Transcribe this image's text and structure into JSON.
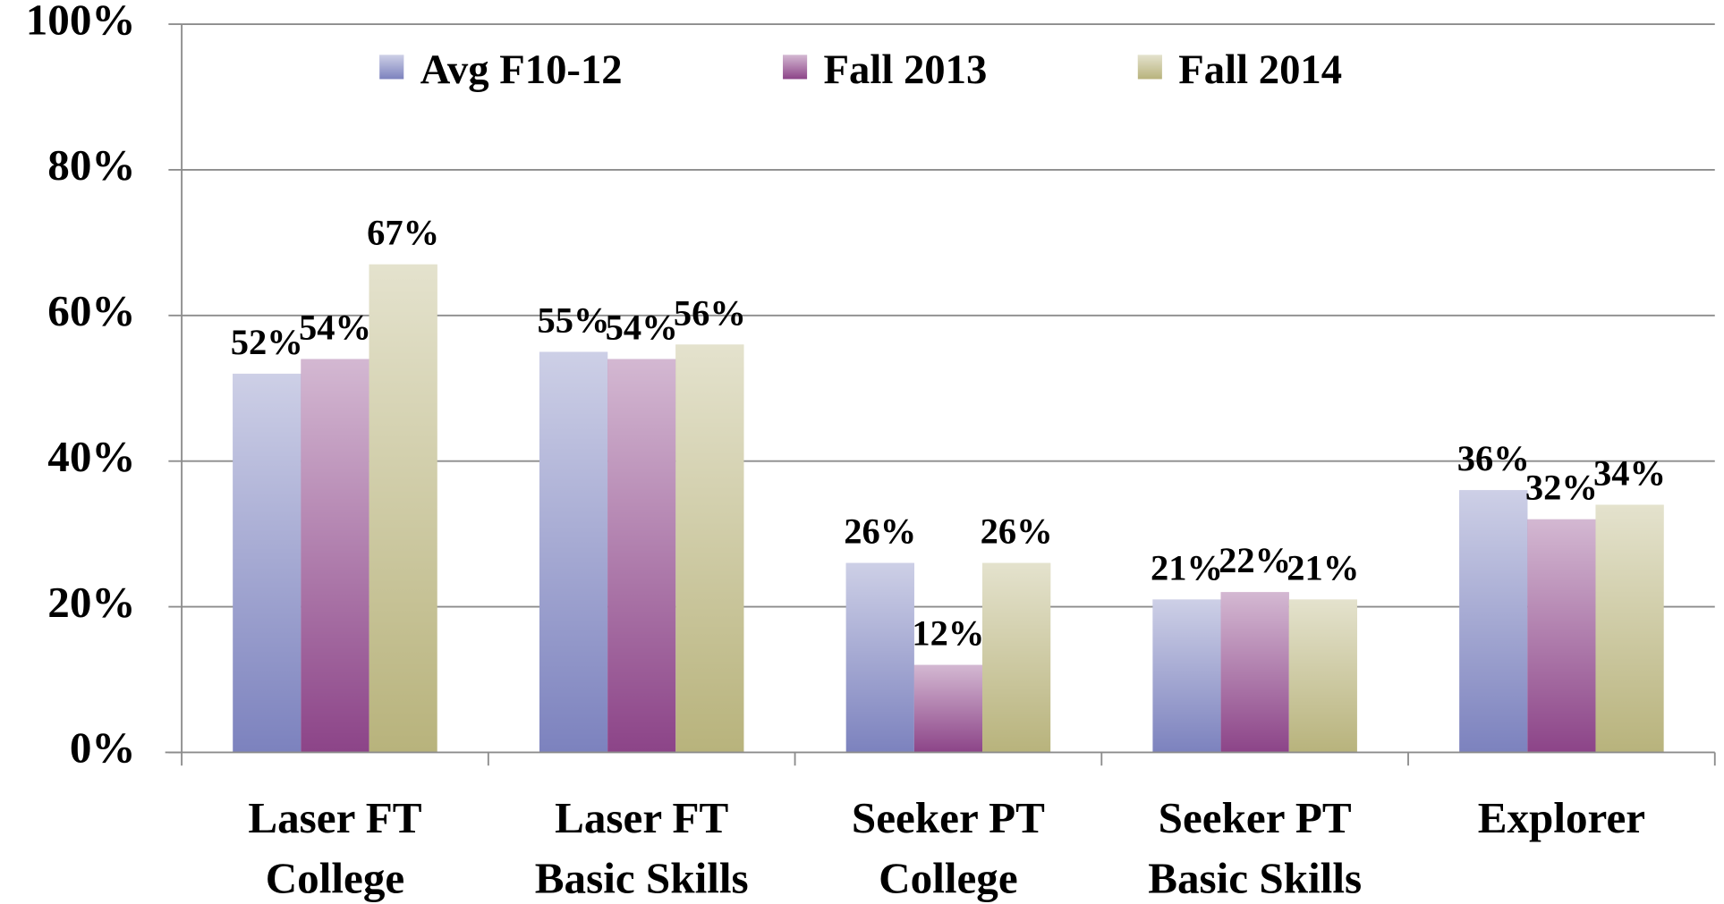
{
  "chart_data": {
    "type": "bar",
    "categories": [
      [
        "Laser FT",
        "College"
      ],
      [
        "Laser FT",
        "Basic Skills"
      ],
      [
        "Seeker PT",
        "College"
      ],
      [
        "Seeker PT",
        "Basic Skills"
      ],
      [
        "Explorer"
      ]
    ],
    "series": [
      {
        "name": "Avg F10-12",
        "color": "#7c82be",
        "values": [
          52,
          55,
          26,
          21,
          36
        ],
        "value_labels": [
          "52%",
          "55%",
          "26%",
          "21%",
          "36%"
        ]
      },
      {
        "name": "Fall 2013",
        "color": "#8c4488",
        "values": [
          54,
          54,
          12,
          22,
          32
        ],
        "value_labels": [
          "54%",
          "54%",
          "12%",
          "22%",
          "32%"
        ]
      },
      {
        "name": "Fall 2014",
        "color": "#b8b37c",
        "values": [
          67,
          56,
          26,
          21,
          34
        ],
        "value_labels": [
          "67%",
          "56%",
          "26%",
          "21%",
          "34%"
        ]
      }
    ],
    "ylim": [
      0,
      100
    ],
    "yticks": [
      {
        "value": 0,
        "label": "0%"
      },
      {
        "value": 20,
        "label": "20%"
      },
      {
        "value": 40,
        "label": "40%"
      },
      {
        "value": 60,
        "label": "60%"
      },
      {
        "value": 80,
        "label": "80%"
      },
      {
        "value": 100,
        "label": "100%"
      }
    ],
    "grid": true,
    "legend": "top"
  }
}
